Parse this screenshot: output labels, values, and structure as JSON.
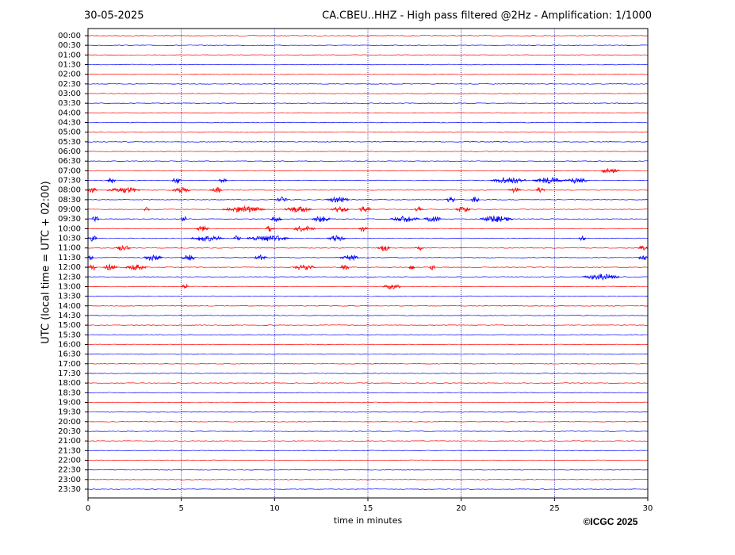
{
  "chart_data": {
    "type": "helicorder",
    "date": "30-05-2025",
    "title": "CA.CBEU..HHZ - High pass filtered @2Hz - Amplification: 1/1000",
    "ylabel": "UTC (local time = UTC + 02:00)",
    "xlabel": "time in minutes",
    "credit": "©ICGC 2025",
    "categories": [
      "00:00",
      "00:30",
      "01:00",
      "01:30",
      "02:00",
      "02:30",
      "03:00",
      "03:30",
      "04:00",
      "04:30",
      "05:00",
      "05:30",
      "06:00",
      "06:30",
      "07:00",
      "07:30",
      "08:00",
      "08:30",
      "09:00",
      "09:30",
      "10:00",
      "10:30",
      "11:00",
      "11:30",
      "12:00",
      "12:30",
      "13:00",
      "13:30",
      "14:00",
      "14:30",
      "15:00",
      "15:30",
      "16:00",
      "16:30",
      "17:00",
      "17:30",
      "18:00",
      "18:30",
      "19:00",
      "19:30",
      "20:00",
      "20:30",
      "21:00",
      "21:30",
      "22:00",
      "22:30",
      "23:00",
      "23:30"
    ],
    "colors": [
      "#ff0000",
      "#0000ff"
    ],
    "xlim": [
      0,
      30
    ],
    "xticks": [
      0,
      5,
      10,
      15,
      20,
      25,
      30
    ],
    "grid": true,
    "events": [
      {
        "row": "07:00",
        "start": 27.5,
        "end": 28.5
      },
      {
        "row": "07:30",
        "start": 1.0,
        "end": 1.5
      },
      {
        "row": "07:30",
        "start": 4.5,
        "end": 5.0
      },
      {
        "row": "07:30",
        "start": 7.0,
        "end": 7.5
      },
      {
        "row": "07:30",
        "start": 21.6,
        "end": 23.5
      },
      {
        "row": "07:30",
        "start": 23.8,
        "end": 25.5
      },
      {
        "row": "07:30",
        "start": 25.5,
        "end": 26.8
      },
      {
        "row": "08:00",
        "start": 0,
        "end": 0.5
      },
      {
        "row": "08:00",
        "start": 1,
        "end": 2.8
      },
      {
        "row": "08:00",
        "start": 4.5,
        "end": 5.5
      },
      {
        "row": "08:00",
        "start": 6.5,
        "end": 7.2
      },
      {
        "row": "08:00",
        "start": 22.5,
        "end": 23.2
      },
      {
        "row": "08:00",
        "start": 24,
        "end": 24.5
      },
      {
        "row": "08:30",
        "start": 10.0,
        "end": 10.7
      },
      {
        "row": "08:30",
        "start": 12.8,
        "end": 14
      },
      {
        "row": "08:30",
        "start": 19.2,
        "end": 19.7
      },
      {
        "row": "08:30",
        "start": 20.5,
        "end": 21
      },
      {
        "row": "09:00",
        "start": 3.0,
        "end": 3.3
      },
      {
        "row": "09:00",
        "start": 7.2,
        "end": 9.5
      },
      {
        "row": "09:00",
        "start": 10.5,
        "end": 12
      },
      {
        "row": "09:00",
        "start": 13,
        "end": 14
      },
      {
        "row": "09:00",
        "start": 14.5,
        "end": 15.2
      },
      {
        "row": "09:00",
        "start": 17.5,
        "end": 18
      },
      {
        "row": "09:00",
        "start": 19.7,
        "end": 20.5
      },
      {
        "row": "09:30",
        "start": 0.2,
        "end": 0.6
      },
      {
        "row": "09:30",
        "start": 5.0,
        "end": 5.3
      },
      {
        "row": "09:30",
        "start": 9.8,
        "end": 10.4
      },
      {
        "row": "09:30",
        "start": 12,
        "end": 13
      },
      {
        "row": "09:30",
        "start": 16.2,
        "end": 17.8
      },
      {
        "row": "09:30",
        "start": 18,
        "end": 19
      },
      {
        "row": "09:30",
        "start": 21,
        "end": 22.8
      },
      {
        "row": "10:00",
        "start": 5.8,
        "end": 6.5
      },
      {
        "row": "10:00",
        "start": 9.5,
        "end": 10
      },
      {
        "row": "10:00",
        "start": 11,
        "end": 12.2
      },
      {
        "row": "10:00",
        "start": 14.5,
        "end": 15
      },
      {
        "row": "10:30",
        "start": 0,
        "end": 0.5
      },
      {
        "row": "10:30",
        "start": 5.5,
        "end": 7.3
      },
      {
        "row": "10:30",
        "start": 7.8,
        "end": 8.2
      },
      {
        "row": "10:30",
        "start": 8.5,
        "end": 10.8
      },
      {
        "row": "10:30",
        "start": 12.8,
        "end": 13.8
      },
      {
        "row": "10:30",
        "start": 26.3,
        "end": 26.7
      },
      {
        "row": "11:00",
        "start": 1.5,
        "end": 2.3
      },
      {
        "row": "11:00",
        "start": 15.5,
        "end": 16.2
      },
      {
        "row": "11:00",
        "start": 17.5,
        "end": 18
      },
      {
        "row": "11:00",
        "start": 29.5,
        "end": 30
      },
      {
        "row": "11:30",
        "start": 0,
        "end": 0.3
      },
      {
        "row": "11:30",
        "start": 3,
        "end": 4
      },
      {
        "row": "11:30",
        "start": 5,
        "end": 5.8
      },
      {
        "row": "11:30",
        "start": 8.9,
        "end": 9.6
      },
      {
        "row": "11:30",
        "start": 13.5,
        "end": 14.5
      },
      {
        "row": "11:30",
        "start": 29.5,
        "end": 30
      },
      {
        "row": "12:00",
        "start": 0,
        "end": 0.5
      },
      {
        "row": "12:00",
        "start": 0.8,
        "end": 1.6
      },
      {
        "row": "12:00",
        "start": 2,
        "end": 3.2
      },
      {
        "row": "12:00",
        "start": 11,
        "end": 12.2
      },
      {
        "row": "12:00",
        "start": 13.5,
        "end": 14
      },
      {
        "row": "12:00",
        "start": 17.2,
        "end": 17.5
      },
      {
        "row": "12:00",
        "start": 18.3,
        "end": 18.6
      },
      {
        "row": "12:30",
        "start": 26.5,
        "end": 28.5
      },
      {
        "row": "13:00",
        "start": 5.0,
        "end": 5.4
      },
      {
        "row": "13:00",
        "start": 15.8,
        "end": 16.8
      }
    ]
  }
}
